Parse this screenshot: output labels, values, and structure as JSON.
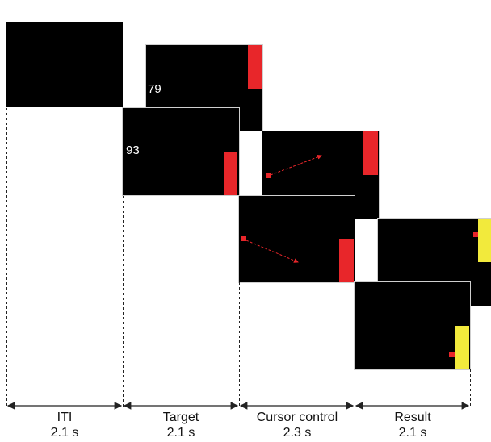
{
  "colors": {
    "background": "#ffffff",
    "screen": "#000000",
    "target_red": "#e8262a",
    "target_yellow": "#f2ea3c",
    "cursor": "#e8262a",
    "timeline": "#222222"
  },
  "panels": [
    {
      "name": "iti",
      "number": "",
      "target_color": "none",
      "cursor": "none"
    },
    {
      "name": "target-front",
      "number": "93",
      "target_color": "red",
      "cursor": "none"
    },
    {
      "name": "target-back",
      "number": "79",
      "target_color": "red",
      "cursor": "none"
    },
    {
      "name": "cursor-front",
      "number": "",
      "target_color": "red",
      "cursor": "arrow"
    },
    {
      "name": "cursor-back",
      "number": "",
      "target_color": "red",
      "cursor": "arrow"
    },
    {
      "name": "result-front",
      "number": "",
      "target_color": "yellow",
      "cursor": "dot"
    },
    {
      "name": "result-back",
      "number": "",
      "target_color": "yellow",
      "cursor": "dot"
    }
  ],
  "phases": [
    {
      "name": "ITI",
      "duration": "2.1 s"
    },
    {
      "name": "Target",
      "duration": "2.1 s"
    },
    {
      "name": "Cursor control",
      "duration": "2.3 s"
    },
    {
      "name": "Result",
      "duration": "2.1 s"
    }
  ]
}
